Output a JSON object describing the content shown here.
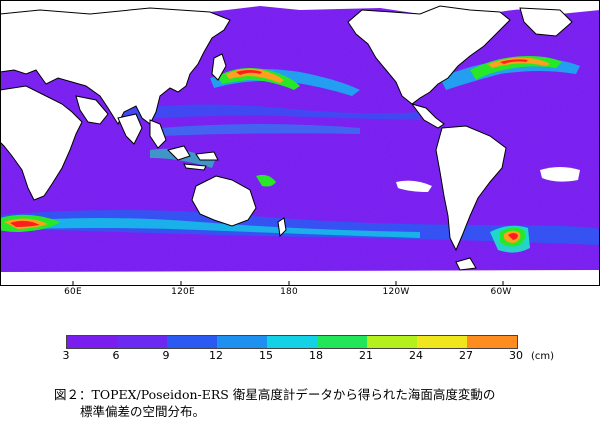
{
  "map": {
    "longitude_labels": [
      "60E",
      "120E",
      "180",
      "120W",
      "60W"
    ],
    "palette": [
      "#7a1ef0",
      "#5a32f0",
      "#1e6ef2",
      "#14b4f0",
      "#1ee6c8",
      "#28e628",
      "#b4f01e",
      "#ffa01e",
      "#ff1e1e"
    ],
    "land_color": "#ffffff",
    "coastline_color": "#000000",
    "dominant_ocean_color": "#7a1ef0"
  },
  "colorbar": {
    "ticks": [
      "3",
      "6",
      "9",
      "12",
      "15",
      "18",
      "21",
      "24",
      "27",
      "30"
    ],
    "unit": "(cm)",
    "colors": [
      "#7a1ef0",
      "#6a2af2",
      "#2a5af2",
      "#1e90f0",
      "#14d2e6",
      "#22e65a",
      "#b4f01e",
      "#f0e61e",
      "#ff8c1e",
      "#ff1e1e"
    ]
  },
  "caption": {
    "line1": "図２：TOPEX/Poseidon-ERS 衛星高度計データから得られた海面高度変動の",
    "line2": "標準偏差の空間分布。"
  }
}
